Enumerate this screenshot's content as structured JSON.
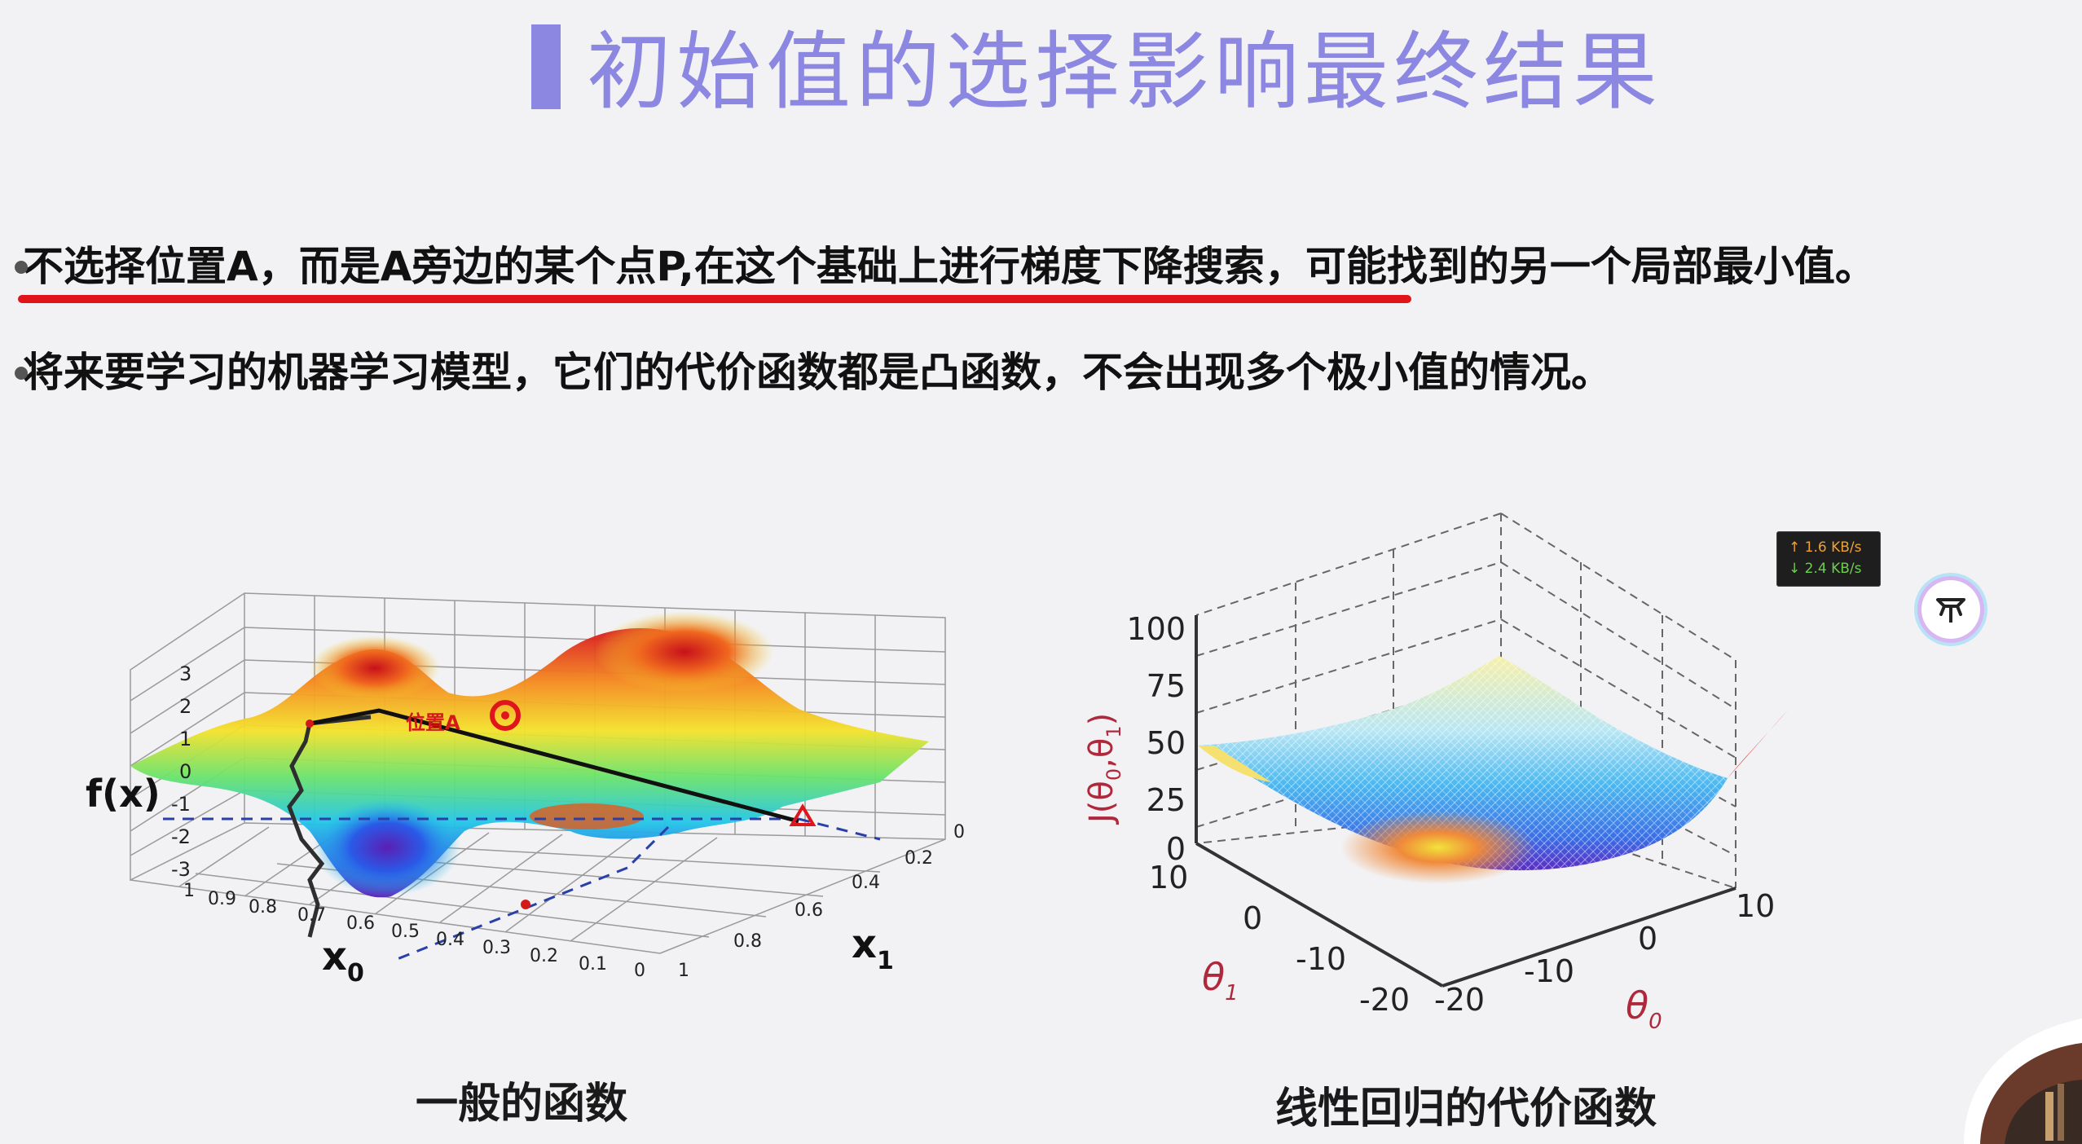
{
  "slide": {
    "title": "初始值的选择影响最终结果",
    "bullets": [
      {
        "underlined_text": "不选择位置A，而是A旁边的某个点P,在这个基础上进行梯度下降搜索",
        "rest_text": "，可能找到的另一个局部最小值。"
      },
      {
        "text": "将来要学习的机器学习模型，它们的代价函数都是凸函数，不会出现多个极小值的情况。"
      }
    ],
    "accent_color": "#8c87e0",
    "underline_color": "#e0151b"
  },
  "left_figure": {
    "caption": "一般的函数",
    "z_label": "f(x)",
    "x_label": "x",
    "x_subscript": "0",
    "y_label": "x",
    "y_subscript": "1",
    "z_ticks": [
      "3",
      "2",
      "1",
      "0",
      "-1",
      "-2",
      "-3"
    ],
    "x_ticks": [
      "1",
      "0.9",
      "0.8",
      "0.7",
      "0.6",
      "0.5",
      "0.4",
      "0.3",
      "0.2",
      "0.1",
      "0"
    ],
    "y_ticks": [
      "0",
      "0.2",
      "0.4",
      "0.6",
      "0.8",
      "1"
    ],
    "point_label": "位置A"
  },
  "right_figure": {
    "caption": "线性回归的代价函数",
    "z_label": "J(θ",
    "z_label_sub0": "0",
    "z_label_mid": ",θ",
    "z_label_sub1": "1",
    "z_label_end": ")",
    "z_ticks": [
      "100",
      "75",
      "50",
      "25",
      "0"
    ],
    "theta1_ticks": [
      "10",
      "0",
      "-10",
      "-20"
    ],
    "theta0_ticks": [
      "-20",
      "-10",
      "0",
      "10"
    ],
    "theta1_label": "θ",
    "theta1_sub": "1",
    "theta0_label": "θ",
    "theta0_sub": "0"
  },
  "network_widget": {
    "upload": "↑ 1.6 KB/s",
    "download": "↓ 2.4 KB/s"
  },
  "floating_button": {
    "icon": "assistant-logo-icon"
  }
}
